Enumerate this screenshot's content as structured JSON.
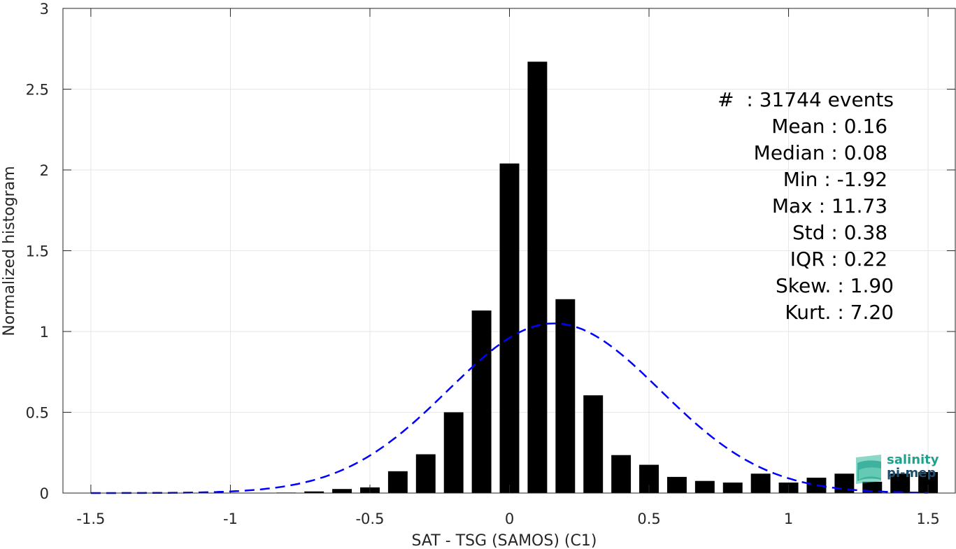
{
  "chart_data": {
    "type": "bar",
    "xlabel": "SAT - TSG (SAMOS) (C1)",
    "ylabel": "Normalized histogram",
    "xlim": [
      -1.6,
      1.6
    ],
    "ylim": [
      0,
      3
    ],
    "x_ticks": [
      -1.5,
      -1,
      -0.5,
      0,
      0.5,
      1,
      1.5
    ],
    "x_tick_labels": [
      "-1.5",
      "-1",
      "-0.5",
      "0",
      "0.5",
      "1",
      "1.5"
    ],
    "y_ticks": [
      0,
      0.5,
      1,
      1.5,
      2,
      2.5,
      3
    ],
    "y_tick_labels": [
      "0",
      "0.5",
      "1",
      "1.5",
      "2",
      "2.5",
      "3"
    ],
    "grid": true,
    "bin_width": 0.1,
    "bins": [
      {
        "x": -1.5,
        "y": 0
      },
      {
        "x": -1.4,
        "y": 0
      },
      {
        "x": -1.3,
        "y": 0
      },
      {
        "x": -1.2,
        "y": 0
      },
      {
        "x": -1.1,
        "y": 0
      },
      {
        "x": -1.0,
        "y": 0
      },
      {
        "x": -0.9,
        "y": 0
      },
      {
        "x": -0.8,
        "y": 0.003
      },
      {
        "x": -0.7,
        "y": 0.01
      },
      {
        "x": -0.6,
        "y": 0.025
      },
      {
        "x": -0.5,
        "y": 0.035
      },
      {
        "x": -0.4,
        "y": 0.135
      },
      {
        "x": -0.3,
        "y": 0.24
      },
      {
        "x": -0.2,
        "y": 0.5
      },
      {
        "x": -0.1,
        "y": 1.13
      },
      {
        "x": 0.0,
        "y": 2.04
      },
      {
        "x": 0.1,
        "y": 2.67
      },
      {
        "x": 0.2,
        "y": 1.2
      },
      {
        "x": 0.3,
        "y": 0.605
      },
      {
        "x": 0.4,
        "y": 0.235
      },
      {
        "x": 0.5,
        "y": 0.175
      },
      {
        "x": 0.6,
        "y": 0.1
      },
      {
        "x": 0.7,
        "y": 0.075
      },
      {
        "x": 0.8,
        "y": 0.065
      },
      {
        "x": 0.9,
        "y": 0.12
      },
      {
        "x": 1.0,
        "y": 0.065
      },
      {
        "x": 1.1,
        "y": 0.095
      },
      {
        "x": 1.2,
        "y": 0.12
      },
      {
        "x": 1.3,
        "y": 0.07
      },
      {
        "x": 1.4,
        "y": 0.12
      },
      {
        "x": 1.5,
        "y": 0.13
      }
    ],
    "bar_color": "#000000",
    "fit_curve": {
      "type": "gaussian",
      "mean": 0.16,
      "std": 0.38,
      "range": [
        -1.5,
        1.5
      ],
      "color": "#0000ff",
      "style": "dashed"
    },
    "stats_box": {
      "placement": "upper-right",
      "lines": [
        "#  : 31744 events",
        "Mean : 0.16 ",
        "Median : 0.08 ",
        "Min : -1.92 ",
        "Max : 11.73 ",
        "Std : 0.38 ",
        "IQR : 0.22 ",
        "Skew. : 1.90",
        "Kurt. : 7.20"
      ]
    }
  },
  "logo": {
    "line1": "salinity",
    "line2": "pi-mep",
    "colors": [
      "#1ea28c",
      "#1e4e6e"
    ]
  }
}
